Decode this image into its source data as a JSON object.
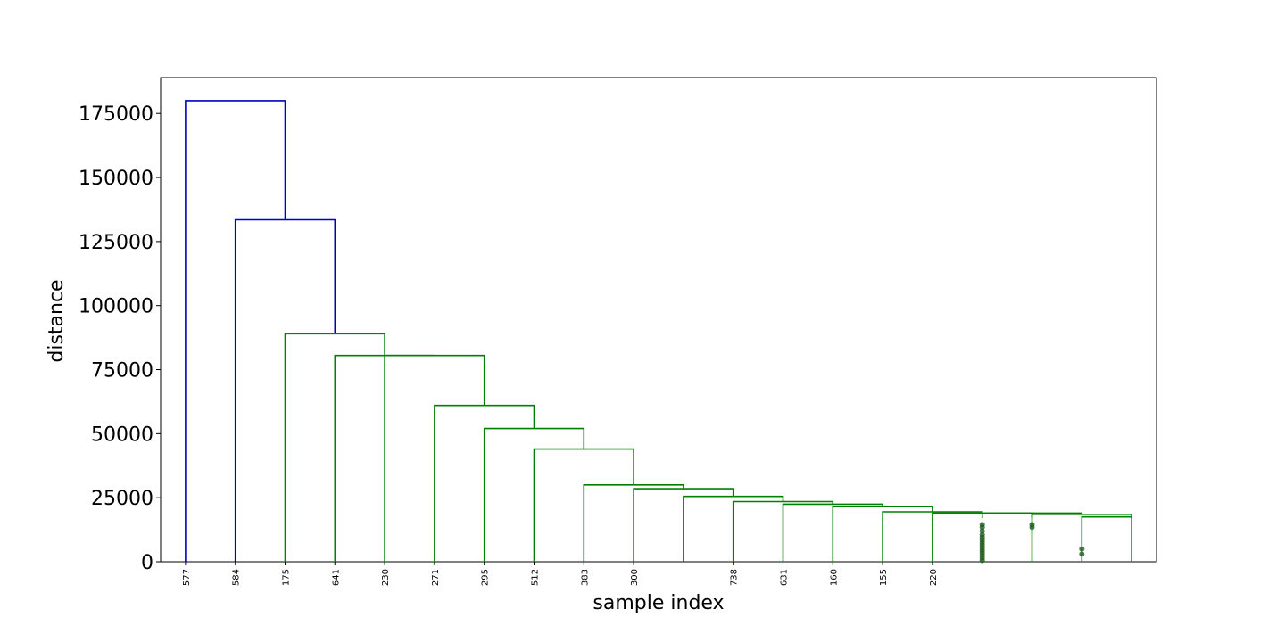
{
  "chart_data": {
    "type": "dendrogram",
    "xlabel": "sample index",
    "ylabel": "distance",
    "ylim": [
      0,
      189000
    ],
    "yticks": [
      0,
      25000,
      50000,
      75000,
      100000,
      125000,
      150000,
      175000
    ],
    "ytick_labels": [
      "0",
      "25000",
      "50000",
      "75000",
      "100000",
      "125000",
      "150000",
      "175000"
    ],
    "grid": false,
    "leaf_labels": [
      {
        "label": "577",
        "x": 1
      },
      {
        "label": "584",
        "x": 2
      },
      {
        "label": "175",
        "x": 3
      },
      {
        "label": "641",
        "x": 4
      },
      {
        "label": "230",
        "x": 5
      },
      {
        "label": "271",
        "x": 6
      },
      {
        "label": "295",
        "x": 7
      },
      {
        "label": "512",
        "x": 8
      },
      {
        "label": "383",
        "x": 9
      },
      {
        "label": "300",
        "x": 10
      },
      {
        "label": "738",
        "x": 12
      },
      {
        "label": "631",
        "x": 13
      },
      {
        "label": "160",
        "x": 14
      },
      {
        "label": "155",
        "x": 15
      },
      {
        "label": "220",
        "x": 16
      }
    ],
    "xlim": [
      0.5,
      20.5
    ],
    "links": [
      {
        "x": [
          1,
          1,
          3,
          3
        ],
        "y": [
          0,
          180000,
          180000,
          133500
        ],
        "color": "#0000bf"
      },
      {
        "x": [
          2,
          2,
          4,
          4
        ],
        "y": [
          0,
          133500,
          133500,
          89000
        ],
        "color": "#0000bf"
      },
      {
        "x": [
          3,
          3,
          5,
          5
        ],
        "y": [
          0,
          89000,
          89000,
          80500
        ],
        "color": "#008000"
      },
      {
        "x": [
          4,
          4,
          7,
          7
        ],
        "y": [
          0,
          80500,
          80500,
          61000
        ],
        "color": "#008000"
      },
      {
        "x": [
          5,
          5,
          6,
          6
        ],
        "y": [
          0,
          80500,
          80500,
          80500
        ],
        "color": "#008000"
      },
      {
        "x": [
          6,
          6,
          8,
          8
        ],
        "y": [
          0,
          61000,
          61000,
          52000
        ],
        "color": "#008000"
      },
      {
        "x": [
          7,
          7,
          9,
          9
        ],
        "y": [
          0,
          52000,
          52000,
          44000
        ],
        "color": "#008000"
      },
      {
        "x": [
          8,
          8,
          10,
          10
        ],
        "y": [
          0,
          44000,
          44000,
          30000
        ],
        "color": "#008000"
      },
      {
        "x": [
          9,
          9,
          11,
          11
        ],
        "y": [
          0,
          30000,
          30000,
          28500
        ],
        "color": "#008000"
      },
      {
        "x": [
          10,
          10,
          12,
          12
        ],
        "y": [
          0,
          28500,
          28500,
          25500
        ],
        "color": "#008000"
      },
      {
        "x": [
          11,
          11,
          13,
          13
        ],
        "y": [
          0,
          25500,
          25500,
          23500
        ],
        "color": "#008000"
      },
      {
        "x": [
          12,
          12,
          14,
          14
        ],
        "y": [
          0,
          23500,
          23500,
          22500
        ],
        "color": "#008000"
      },
      {
        "x": [
          13,
          13,
          15,
          15
        ],
        "y": [
          0,
          22500,
          22500,
          21500
        ],
        "color": "#008000"
      },
      {
        "x": [
          14,
          14,
          16,
          16
        ],
        "y": [
          0,
          21500,
          21500,
          19500
        ],
        "color": "#008000"
      },
      {
        "x": [
          15,
          15,
          17,
          17
        ],
        "y": [
          0,
          19500,
          19500,
          19000
        ],
        "color": "#008000"
      },
      {
        "x": [
          16,
          16,
          18,
          18
        ],
        "y": [
          0,
          19000,
          19000,
          17000
        ],
        "color": "#008000"
      },
      {
        "x": [
          17,
          17,
          19,
          19
        ],
        "y": [
          17000,
          19000,
          19000,
          18500
        ],
        "color": "#008000"
      },
      {
        "x": [
          18,
          18,
          20,
          20
        ],
        "y": [
          0,
          18500,
          18500,
          17500
        ],
        "color": "#008000"
      },
      {
        "x": [
          19,
          19,
          20,
          20
        ],
        "y": [
          0,
          17500,
          17500,
          0
        ],
        "color": "#008000"
      }
    ],
    "dots": [
      {
        "x": 17.0,
        "y": 14500
      },
      {
        "x": 17.0,
        "y": 13500
      },
      {
        "x": 17.0,
        "y": 12000
      },
      {
        "x": 17.0,
        "y": 10500
      },
      {
        "x": 17.0,
        "y": 9500
      },
      {
        "x": 17.0,
        "y": 8500
      },
      {
        "x": 17.0,
        "y": 7500
      },
      {
        "x": 17.0,
        "y": 6500
      },
      {
        "x": 17.0,
        "y": 5500
      },
      {
        "x": 17.0,
        "y": 4500
      },
      {
        "x": 17.0,
        "y": 3500
      },
      {
        "x": 17.0,
        "y": 2500
      },
      {
        "x": 17.0,
        "y": 1500
      },
      {
        "x": 17.0,
        "y": 500
      },
      {
        "x": 18.0,
        "y": 14500
      },
      {
        "x": 18.0,
        "y": 13500
      },
      {
        "x": 19.0,
        "y": 5000
      },
      {
        "x": 19.0,
        "y": 3000
      }
    ],
    "dot_color": "#1c5c1c"
  }
}
